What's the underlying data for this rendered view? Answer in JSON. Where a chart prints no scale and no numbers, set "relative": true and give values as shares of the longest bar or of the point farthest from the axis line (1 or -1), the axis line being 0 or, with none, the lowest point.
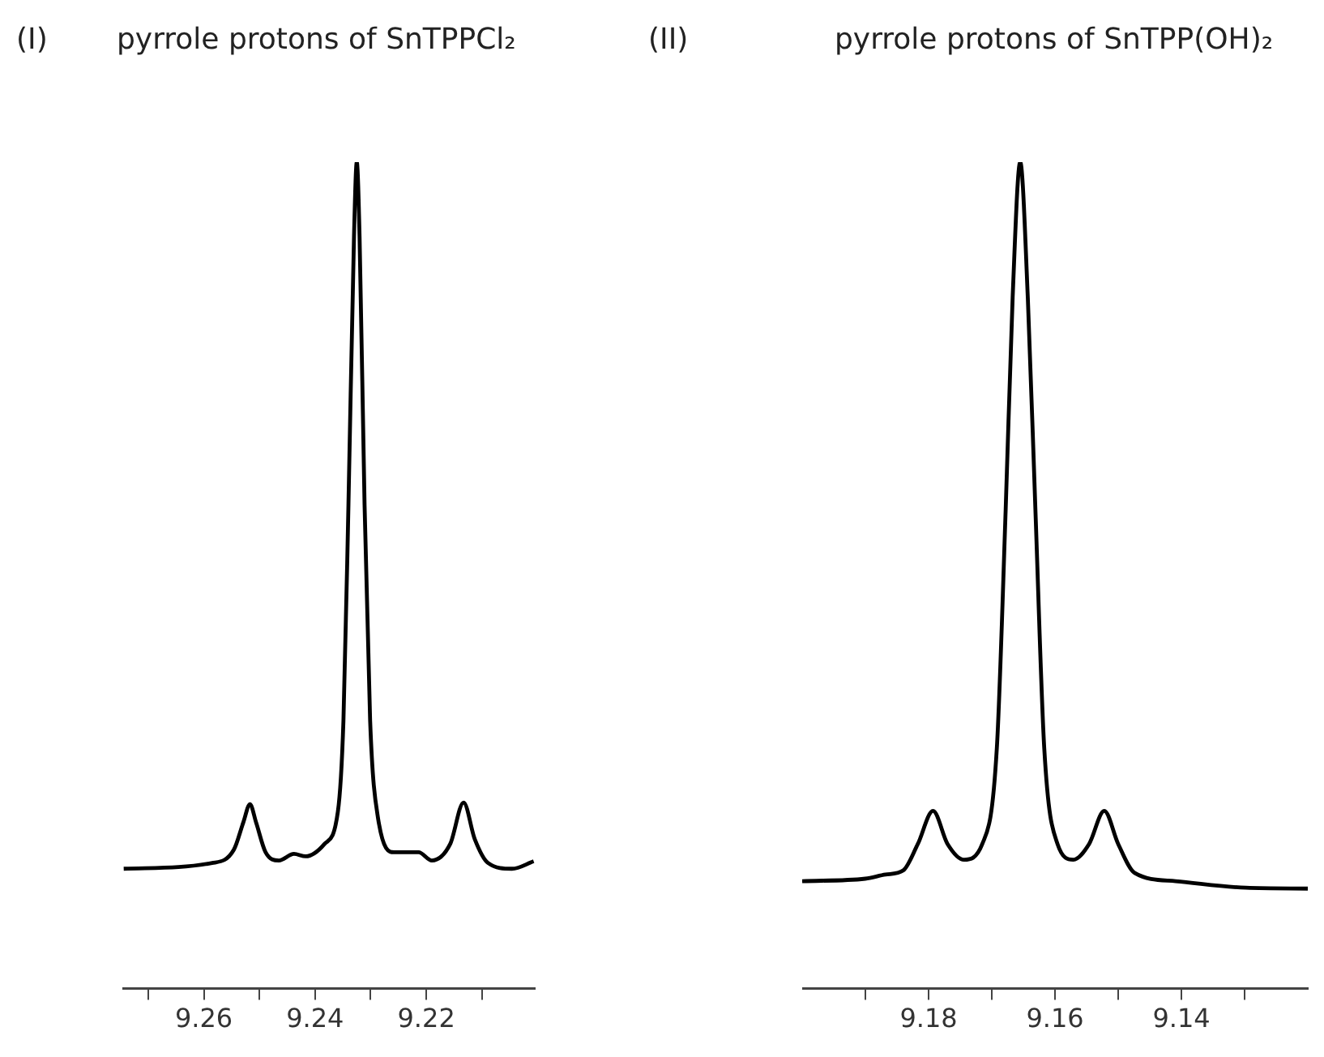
{
  "chart_data": [
    {
      "type": "line",
      "title": "(I)",
      "subtitle": "pyrrole protons of SnTPPCl₂",
      "relative": true,
      "xlim": [
        9.2745,
        9.2005
      ],
      "xticks": [
        {
          "value": 9.27,
          "label": null
        },
        9.26,
        {
          "value": 9.25,
          "label": null
        },
        9.24,
        {
          "value": 9.23,
          "label": null
        },
        9.22,
        {
          "value": 9.21,
          "label": null
        }
      ],
      "x": [
        9.2744,
        9.2585,
        9.2546,
        9.2529,
        9.2517,
        9.2506,
        9.2489,
        9.2465,
        9.2438,
        9.2417,
        9.2383,
        9.2359,
        9.2349,
        9.234,
        9.233,
        9.2325,
        9.232,
        9.2311,
        9.2301,
        9.2287,
        9.2258,
        9.2214,
        9.219,
        9.2157,
        9.2133,
        9.2113,
        9.2089,
        9.2046,
        9.2007
      ],
      "series": [
        {
          "color": "#000000",
          "values": [
            0.145,
            0.152,
            0.168,
            0.201,
            0.223,
            0.201,
            0.165,
            0.155,
            0.163,
            0.16,
            0.175,
            0.214,
            0.324,
            0.585,
            0.91,
            1,
            0.91,
            0.585,
            0.324,
            0.207,
            0.165,
            0.165,
            0.155,
            0.175,
            0.225,
            0.181,
            0.152,
            0.145,
            0.154
          ]
        }
      ]
    },
    {
      "type": "line",
      "title": "(II)",
      "subtitle": "pyrrole protons of SnTPP(OH)₂",
      "relative": true,
      "xlim": [
        9.2,
        9.12
      ],
      "xticks": [
        {
          "value": 9.19,
          "label": null
        },
        9.18,
        {
          "value": 9.17,
          "label": null
        },
        9.16,
        {
          "value": 9.15,
          "label": null
        },
        9.14,
        {
          "value": 9.13,
          "label": null
        }
      ],
      "x": [
        9.2,
        9.19,
        9.1868,
        9.184,
        9.1817,
        9.1793,
        9.177,
        9.1744,
        9.1715,
        9.1692,
        9.1678,
        9.1667,
        9.1655,
        9.1643,
        9.1631,
        9.1617,
        9.1596,
        9.1571,
        9.1546,
        9.1522,
        9.15,
        9.1474,
        9.1409,
        9.1298,
        9.12
      ],
      "series": [
        {
          "color": "#000000",
          "values": [
            0.13,
            0.133,
            0.138,
            0.143,
            0.175,
            0.215,
            0.175,
            0.156,
            0.175,
            0.291,
            0.58,
            0.836,
            1,
            0.836,
            0.58,
            0.291,
            0.175,
            0.156,
            0.175,
            0.215,
            0.175,
            0.14,
            0.13,
            0.122,
            0.121
          ]
        }
      ]
    }
  ]
}
